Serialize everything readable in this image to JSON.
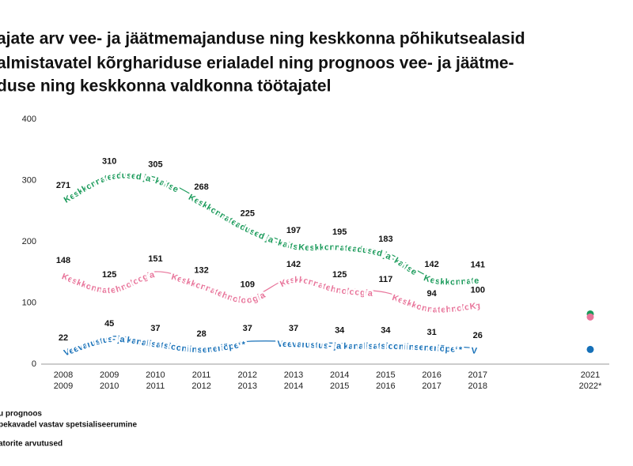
{
  "title_lines": [
    "ajate arv vee- ja jäätmemajanduse ning keskkonna põhikutsealasid",
    "almistavatel kõrghariduse erialadel ning prognoos vee- ja jäätme-",
    "duse ning keskkonna valdkonna töötajatel"
  ],
  "chart_data": {
    "type": "line",
    "categories": [
      [
        "2008",
        "2009"
      ],
      [
        "2009",
        "2010"
      ],
      [
        "2010",
        "2011"
      ],
      [
        "2011",
        "2012"
      ],
      [
        "2012",
        "2013"
      ],
      [
        "2013",
        "2014"
      ],
      [
        "2014",
        "2015"
      ],
      [
        "2015",
        "2016"
      ],
      [
        "2016",
        "2017"
      ],
      [
        "2017",
        "2018"
      ],
      [
        "2021",
        "2022*"
      ]
    ],
    "series": [
      {
        "name": "Keskkonnateadused ja -kaitse",
        "color": "#1a9a5a",
        "values": [
          271,
          310,
          305,
          268,
          225,
          197,
          195,
          183,
          142,
          141,
          null
        ],
        "forecast": 82
      },
      {
        "name": "Keskkonnatehnoloogia",
        "color": "#e8749a",
        "values": [
          148,
          125,
          151,
          132,
          109,
          142,
          125,
          117,
          94,
          100,
          null
        ],
        "forecast": 77
      },
      {
        "name": "Veevarustus- ja kanalisatsiooniinseneriõpe**",
        "color": "#1670b8",
        "values": [
          22,
          45,
          37,
          28,
          37,
          37,
          34,
          34,
          31,
          26,
          null
        ],
        "forecast": 24
      }
    ],
    "ylim": [
      0,
      400
    ],
    "yticks": [
      0,
      100,
      200,
      300,
      400
    ],
    "grid": false
  },
  "footnotes": [
    "u prognoos",
    "pekavadel vastav spetsialiseerumine",
    "atorite arvutused"
  ]
}
